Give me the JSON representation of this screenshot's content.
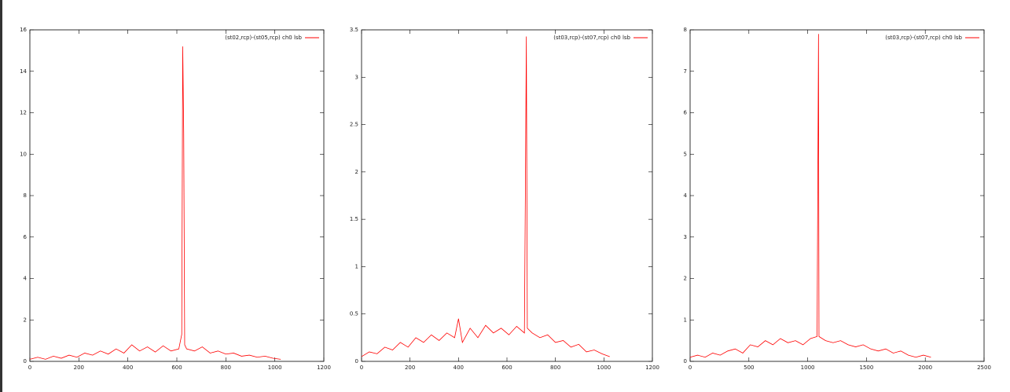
{
  "chart_data": [
    {
      "type": "line",
      "legend": "top-right",
      "series": [
        {
          "name": "(st02,rcp)-(st05,rcp) ch0 lsb",
          "color": "#ff0000",
          "x": [
            0,
            32,
            64,
            96,
            128,
            160,
            192,
            224,
            256,
            288,
            320,
            352,
            384,
            416,
            448,
            480,
            512,
            544,
            576,
            608,
            620,
            624,
            628,
            632,
            640,
            672,
            704,
            736,
            768,
            800,
            832,
            864,
            896,
            928,
            960,
            992,
            1024
          ],
          "values": [
            0.1,
            0.2,
            0.1,
            0.25,
            0.15,
            0.3,
            0.2,
            0.4,
            0.3,
            0.5,
            0.35,
            0.6,
            0.4,
            0.8,
            0.5,
            0.7,
            0.45,
            0.75,
            0.5,
            0.6,
            1.3,
            15.2,
            11,
            0.8,
            0.6,
            0.5,
            0.7,
            0.4,
            0.5,
            0.35,
            0.4,
            0.25,
            0.3,
            0.2,
            0.25,
            0.15,
            0.1
          ]
        }
      ],
      "xlim": [
        0,
        1200
      ],
      "xticks": [
        0,
        200,
        400,
        600,
        800,
        1000,
        1200
      ],
      "ylim": [
        0,
        16
      ],
      "yticks": [
        0,
        2,
        4,
        6,
        8,
        10,
        12,
        14,
        16
      ]
    },
    {
      "type": "line",
      "legend": "top-right",
      "series": [
        {
          "name": "(st03,rcp)-(st07,rcp) ch0 lsb",
          "color": "#ff0000",
          "x": [
            0,
            32,
            64,
            96,
            128,
            160,
            192,
            224,
            256,
            288,
            320,
            352,
            384,
            400,
            416,
            448,
            480,
            512,
            544,
            576,
            608,
            640,
            672,
            676,
            680,
            684,
            704,
            736,
            768,
            800,
            832,
            864,
            896,
            928,
            960,
            992,
            1024
          ],
          "values": [
            0.05,
            0.1,
            0.08,
            0.15,
            0.12,
            0.2,
            0.15,
            0.25,
            0.2,
            0.28,
            0.22,
            0.3,
            0.25,
            0.45,
            0.2,
            0.35,
            0.25,
            0.38,
            0.3,
            0.35,
            0.28,
            0.37,
            0.3,
            1.78,
            3.43,
            0.35,
            0.3,
            0.25,
            0.28,
            0.2,
            0.22,
            0.15,
            0.18,
            0.1,
            0.12,
            0.08,
            0.05
          ]
        }
      ],
      "xlim": [
        0,
        1200
      ],
      "xticks": [
        0,
        200,
        400,
        600,
        800,
        1000,
        1200
      ],
      "ylim": [
        0,
        3.5
      ],
      "yticks": [
        0,
        0.5,
        1,
        1.5,
        2,
        2.5,
        3,
        3.5
      ]
    },
    {
      "type": "line",
      "legend": "top-right",
      "series": [
        {
          "name": "(st03,rcp)-(st07,rcp) ch0 lsb",
          "color": "#ff0000",
          "x": [
            0,
            64,
            128,
            192,
            256,
            320,
            384,
            448,
            512,
            576,
            640,
            704,
            768,
            832,
            896,
            960,
            1024,
            1080,
            1088,
            1092,
            1096,
            1152,
            1216,
            1280,
            1344,
            1408,
            1472,
            1536,
            1600,
            1664,
            1728,
            1792,
            1856,
            1920,
            1984,
            2048
          ],
          "values": [
            0.1,
            0.15,
            0.1,
            0.2,
            0.15,
            0.25,
            0.3,
            0.2,
            0.4,
            0.35,
            0.5,
            0.4,
            0.55,
            0.45,
            0.5,
            0.4,
            0.55,
            0.6,
            5.5,
            7.9,
            0.6,
            0.5,
            0.45,
            0.5,
            0.4,
            0.35,
            0.4,
            0.3,
            0.25,
            0.3,
            0.2,
            0.25,
            0.15,
            0.1,
            0.15,
            0.1
          ]
        }
      ],
      "xlim": [
        0,
        2500
      ],
      "xticks": [
        0,
        500,
        1000,
        1500,
        2000,
        2500
      ],
      "ylim": [
        0,
        8
      ],
      "yticks": [
        0,
        1,
        2,
        3,
        4,
        5,
        6,
        7,
        8
      ]
    }
  ]
}
